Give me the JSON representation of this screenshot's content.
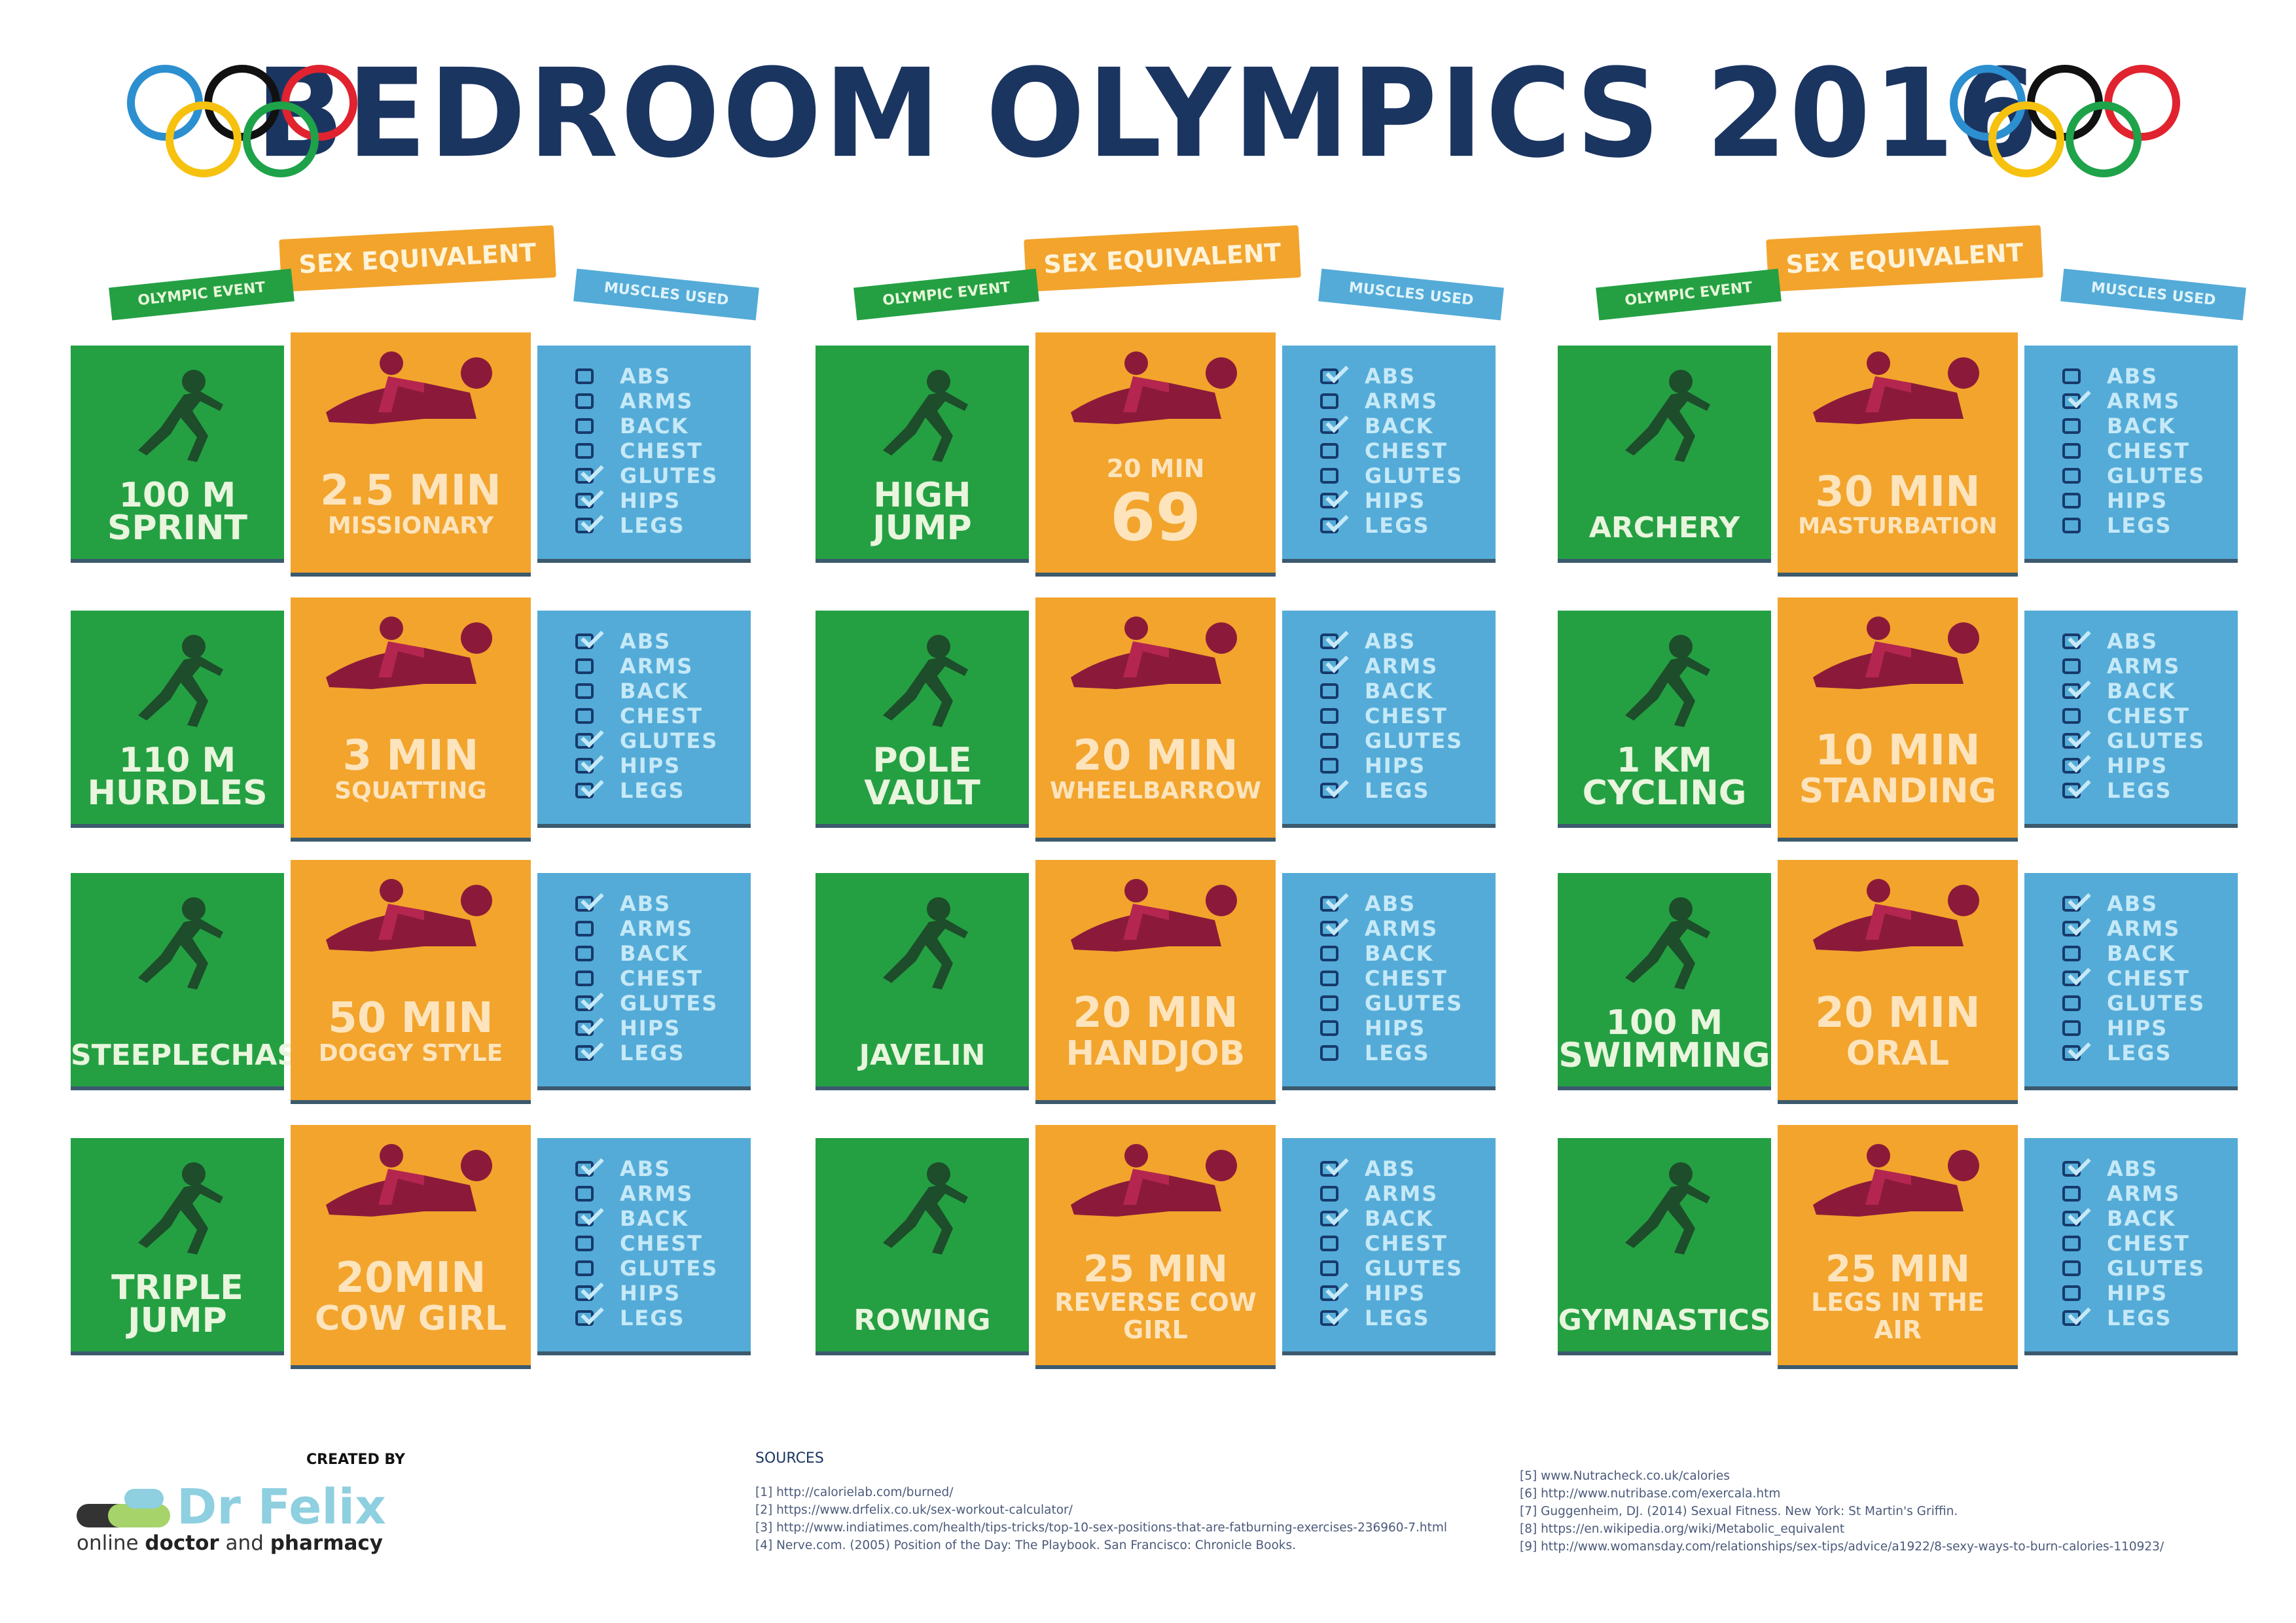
{
  "title": "BEDROOM OLYMPICS 2016",
  "ribbons": {
    "sex": "SEX EQUIVALENT",
    "event": "OLYMPIC EVENT",
    "muscles": "MUSCLES USED"
  },
  "muscle_labels": [
    "ABS",
    "ARMS",
    "BACK",
    "CHEST",
    "GLUTES",
    "HIPS",
    "LEGS"
  ],
  "colors": {
    "title": "#1b3561",
    "event": "#24a043",
    "sex": "#f2a42c",
    "muscles": "#54abd7",
    "figure": "#8b1a3a"
  },
  "groups": [
    {
      "rows": [
        {
          "event": [
            "100 M",
            "SPRINT"
          ],
          "icon": "sprinter-icon",
          "sex_top": "2.5 MIN",
          "sex_bottom": "MISSIONARY",
          "sex_icon": "missionary-icon",
          "muscles": [
            false,
            false,
            false,
            false,
            true,
            true,
            true
          ]
        },
        {
          "event": [
            "110 M",
            "HURDLES"
          ],
          "icon": "hurdler-icon",
          "sex_top": "3 MIN",
          "sex_bottom": "SQUATTING",
          "sex_icon": "squatting-icon",
          "muscles": [
            true,
            false,
            false,
            false,
            true,
            true,
            true
          ]
        },
        {
          "event": [
            "STEEPLECHASE"
          ],
          "icon": "steeplechase-icon",
          "sex_top": "50 MIN",
          "sex_bottom": "DOGGY STYLE",
          "sex_icon": "doggy-icon",
          "muscles": [
            true,
            false,
            false,
            false,
            true,
            true,
            true
          ]
        },
        {
          "event": [
            "TRIPLE",
            "JUMP"
          ],
          "icon": "triple-jump-icon",
          "sex_top": "20MIN",
          "sex_bottom": "COW GIRL",
          "sex_icon": "cowgirl-icon",
          "muscles": [
            true,
            false,
            true,
            false,
            false,
            true,
            true
          ]
        }
      ]
    },
    {
      "rows": [
        {
          "event": [
            "HIGH",
            "JUMP"
          ],
          "icon": "high-jump-icon",
          "sex_top": "20 MIN",
          "sex_bottom": "69",
          "sex_icon": "sixty-nine-icon",
          "sex_big_bottom": true,
          "muscles": [
            true,
            false,
            true,
            false,
            false,
            true,
            true
          ]
        },
        {
          "event": [
            "POLE",
            "VAULT"
          ],
          "icon": "pole-vault-icon",
          "sex_top": "20 MIN",
          "sex_bottom": "WHEELBARROW",
          "sex_icon": "wheelbarrow-icon",
          "muscles": [
            true,
            true,
            false,
            false,
            false,
            false,
            true
          ]
        },
        {
          "event": [
            "JAVELIN"
          ],
          "icon": "javelin-icon",
          "sex_top": "20 MIN",
          "sex_bottom": "HANDJOB",
          "sex_icon": "hand-icon",
          "muscles": [
            true,
            true,
            false,
            false,
            false,
            false,
            false
          ]
        },
        {
          "event": [
            "ROWING"
          ],
          "icon": "rowing-icon",
          "sex_top": "25 MIN",
          "sex_bottom": "REVERSE COW GIRL",
          "sex_icon": "reverse-cowgirl-icon",
          "muscles": [
            true,
            false,
            true,
            false,
            false,
            true,
            true
          ]
        }
      ]
    },
    {
      "rows": [
        {
          "event": [
            "ARCHERY"
          ],
          "icon": "archer-icon",
          "sex_top": "30 MIN",
          "sex_bottom": "MASTURBATION",
          "sex_icon": "fist-icon",
          "muscles": [
            false,
            true,
            false,
            false,
            false,
            false,
            false
          ]
        },
        {
          "event": [
            "1 KM",
            "CYCLING"
          ],
          "icon": "cyclist-icon",
          "sex_top": "10 MIN",
          "sex_bottom": "STANDING",
          "sex_icon": "standing-icon",
          "muscles": [
            true,
            false,
            true,
            false,
            true,
            true,
            true
          ]
        },
        {
          "event": [
            "100 M",
            "SWIMMING"
          ],
          "icon": "swimmer-icon",
          "sex_top": "20 MIN",
          "sex_bottom": "ORAL",
          "sex_icon": "oral-icon",
          "muscles": [
            true,
            true,
            false,
            true,
            false,
            false,
            true
          ]
        },
        {
          "event": [
            "GYMNASTICS"
          ],
          "icon": "gymnast-icon",
          "sex_top": "25 MIN",
          "sex_bottom": "LEGS IN THE AIR",
          "sex_icon": "legs-in-air-icon",
          "muscles": [
            true,
            false,
            true,
            false,
            false,
            false,
            true
          ]
        }
      ]
    }
  ],
  "footer": {
    "created_by": "CREATED BY",
    "brand": "Dr Felix",
    "tagline_1": "online ",
    "tagline_2": "doctor",
    "tagline_3": " and ",
    "tagline_4": "pharmacy",
    "sources_heading": "SOURCES",
    "sources": [
      "[1] http://calorielab.com/burned/",
      "[2] https://www.drfelix.co.uk/sex-workout-calculator/",
      "[3] http://www.indiatimes.com/health/tips-tricks/top-10-sex-positions-that-are-fatburning-exercises-236960-7.html",
      "[4] Nerve.com. (2005) Position of the Day: The Playbook. San Francisco: Chronicle Books.",
      "[5] www.Nutracheck.co.uk/calories",
      "[6] http://www.nutribase.com/exercala.htm",
      "[7] Guggenheim, DJ. (2014) Sexual Fitness. New York: St Martin's Griffin.",
      "[8] https://en.wikipedia.org/wiki/Metabolic_equivalent",
      "[9] http://www.womansday.com/relationships/sex-tips/advice/a1922/8-sexy-ways-to-burn-calories-110923/"
    ]
  }
}
